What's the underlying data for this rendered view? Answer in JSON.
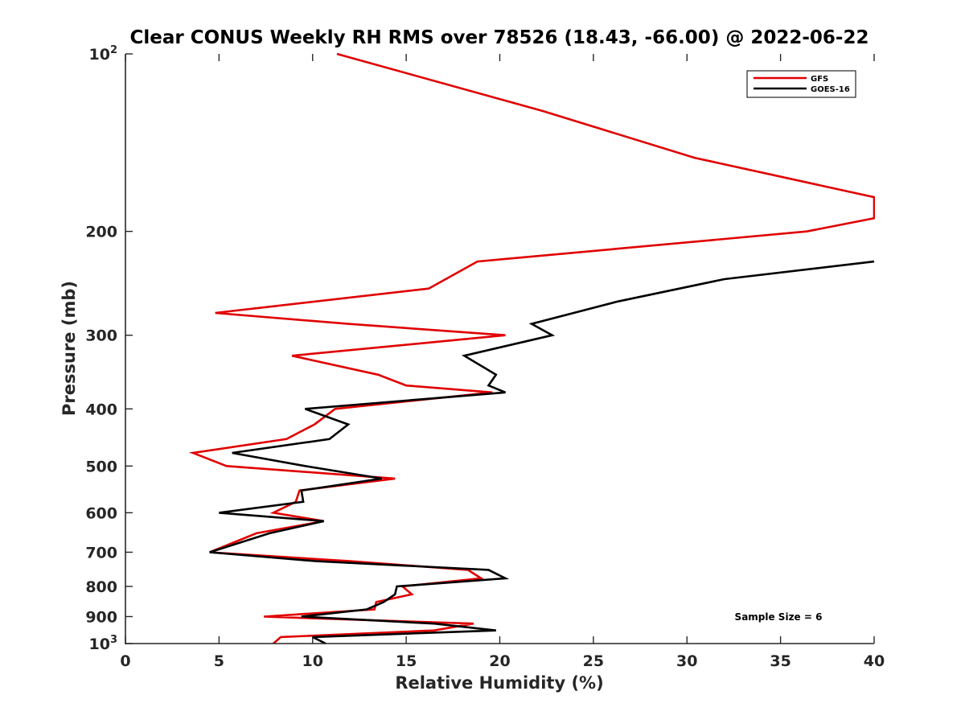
{
  "chart_data": {
    "type": "line",
    "title": "Clear CONUS Weekly RH RMS over 78526 (18.43, -66.00) @ 2022-06-22",
    "xlabel": "Relative Humidity (%)",
    "ylabel": "Pressure (mb)",
    "xlim": [
      0,
      40
    ],
    "ylim": [
      100,
      1000
    ],
    "y_scale": "log",
    "y_reversed": true,
    "x_ticks": [
      "0",
      "5",
      "10",
      "15",
      "20",
      "25",
      "30",
      "35",
      "40"
    ],
    "y_ticks": [
      {
        "value": 100,
        "label": "10",
        "sup": "2"
      },
      {
        "value": 200,
        "label": "200"
      },
      {
        "value": 300,
        "label": "300"
      },
      {
        "value": 400,
        "label": "400"
      },
      {
        "value": 500,
        "label": "500"
      },
      {
        "value": 600,
        "label": "600"
      },
      {
        "value": 700,
        "label": "700"
      },
      {
        "value": 800,
        "label": "800"
      },
      {
        "value": 900,
        "label": "900"
      },
      {
        "value": 1000,
        "label": "10",
        "sup": "3"
      }
    ],
    "grid": false,
    "legend_position": "top-right",
    "annotation": "Sample Size = 6",
    "series": [
      {
        "name": "GFS",
        "color": "#e00000",
        "points": [
          [
            11.3,
            100
          ],
          [
            22.3,
            125
          ],
          [
            30.4,
            150
          ],
          [
            40.0,
            175
          ],
          [
            40.0,
            190
          ],
          [
            36.4,
            200
          ],
          [
            18.8,
            225
          ],
          [
            16.2,
            250
          ],
          [
            4.8,
            275
          ],
          [
            11.9,
            287
          ],
          [
            20.3,
            300
          ],
          [
            8.9,
            325
          ],
          [
            13.5,
            350
          ],
          [
            15.0,
            365
          ],
          [
            19.6,
            375
          ],
          [
            11.2,
            400
          ],
          [
            10.1,
            425
          ],
          [
            8.6,
            450
          ],
          [
            3.6,
            475
          ],
          [
            5.4,
            500
          ],
          [
            14.4,
            525
          ],
          [
            9.3,
            550
          ],
          [
            9.1,
            575
          ],
          [
            7.9,
            600
          ],
          [
            10.6,
            620
          ],
          [
            7.0,
            650
          ],
          [
            4.5,
            700
          ],
          [
            12.0,
            725
          ],
          [
            18.3,
            750
          ],
          [
            19.0,
            775
          ],
          [
            14.8,
            800
          ],
          [
            15.3,
            825
          ],
          [
            13.4,
            850
          ],
          [
            13.3,
            875
          ],
          [
            7.4,
            900
          ],
          [
            18.6,
            925
          ],
          [
            16.5,
            950
          ],
          [
            8.3,
            975
          ],
          [
            7.9,
            1000
          ]
        ]
      },
      {
        "name": "GOES-16",
        "color": "#000000",
        "points": [
          [
            40.0,
            225
          ],
          [
            32.0,
            241
          ],
          [
            26.3,
            263
          ],
          [
            21.7,
            287
          ],
          [
            22.8,
            300
          ],
          [
            18.1,
            325
          ],
          [
            19.8,
            350
          ],
          [
            19.4,
            365
          ],
          [
            20.3,
            375
          ],
          [
            9.6,
            400
          ],
          [
            11.9,
            425
          ],
          [
            10.9,
            450
          ],
          [
            5.7,
            475
          ],
          [
            9.6,
            500
          ],
          [
            13.7,
            525
          ],
          [
            9.4,
            550
          ],
          [
            9.5,
            575
          ],
          [
            5.0,
            600
          ],
          [
            10.6,
            620
          ],
          [
            7.7,
            650
          ],
          [
            4.5,
            700
          ],
          [
            10.2,
            725
          ],
          [
            19.4,
            750
          ],
          [
            20.3,
            775
          ],
          [
            14.5,
            800
          ],
          [
            14.4,
            825
          ],
          [
            13.8,
            850
          ],
          [
            12.9,
            875
          ],
          [
            9.4,
            900
          ],
          [
            16.5,
            925
          ],
          [
            19.8,
            950
          ],
          [
            10.0,
            975
          ],
          [
            10.7,
            1000
          ]
        ]
      }
    ]
  }
}
